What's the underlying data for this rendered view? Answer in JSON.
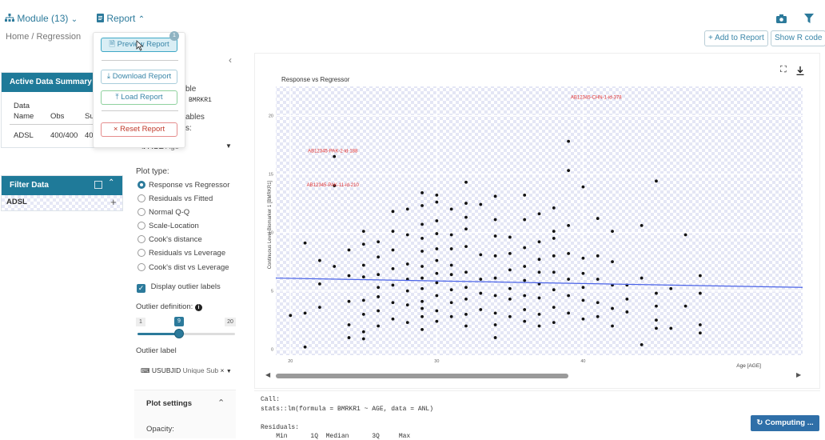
{
  "topbar": {
    "module_label": "Module (13)",
    "report_label": "Report",
    "breadcrumb": "Home / Regression"
  },
  "report_menu": {
    "badge": "1",
    "preview": "Preview Report",
    "download": "Download Report",
    "load": "Load Report",
    "reset": "Reset Report"
  },
  "actions": {
    "add_to_report": "+ Add to Report",
    "show_r_code": "Show R code"
  },
  "active_data": {
    "title": "Active Data Summary",
    "col_data": "Data",
    "col_name": "Name",
    "col_obs": "Obs",
    "col_subjects": "Su",
    "row_name": "ADSL",
    "row_obs": "400/400",
    "row_subjects": "40"
  },
  "filter_data": {
    "title": "Filter Data",
    "dataset": "ADSL"
  },
  "encodings": {
    "frag_variable": "ble",
    "response_value": "BMRKR1",
    "frag_regressor": "ables",
    "frag_colon": "s:",
    "regressor_value": "AGE",
    "regressor_label": "Age",
    "plot_type_label": "Plot type:",
    "plot_types": [
      "Response vs Regressor",
      "Residuals vs Fitted",
      "Normal Q-Q",
      "Scale-Location",
      "Cook's distance",
      "Residuals vs Leverage",
      "Cook's dist vs Leverage"
    ],
    "display_outlier_labels": "Display outlier labels",
    "outlier_def_label": "Outlier definition:",
    "slider_min": "1",
    "slider_value": "9",
    "slider_max": "20",
    "outlier_label_title": "Outlier label",
    "outlier_label_value": "USUBJID",
    "outlier_label_sub": "Unique Sub",
    "plot_settings": "Plot settings",
    "opacity": "Opacity:"
  },
  "output": {
    "call_label": "Call:",
    "call_text": "stats::lm(formula = BMRKR1 ~ AGE, data = ANL)",
    "residuals_label": "Residuals:",
    "residual_headers": "    Min      1Q  Median      3Q     Max",
    "computing": "Computing ..."
  },
  "colors": {
    "accent": "#2c7a9b",
    "header": "#1f7a99",
    "fit_line": "#4a63e8",
    "outlier": "#e03131"
  },
  "chart_data": {
    "type": "scatter",
    "title": "Response vs Regressor",
    "xlabel": "Age [AGE]",
    "ylabel": "Continuous Level Biomarker 1 [BMRKR1]",
    "xlim": [
      19,
      55
    ],
    "ylim": [
      -0.5,
      22.5
    ],
    "xticks": [
      20,
      30,
      40
    ],
    "yticks": [
      0,
      5,
      10,
      15,
      20
    ],
    "fit_line": {
      "x": [
        19,
        55
      ],
      "y": [
        6.1,
        5.3
      ]
    },
    "annotations": [
      {
        "label": "AB12345-CHN-1-id-378",
        "x": 41,
        "y": 21.3
      },
      {
        "label": "AB12345-PAK-2-id-188",
        "x": 23,
        "y": 16.7
      },
      {
        "label": "AB12345-PAK-11-id-210",
        "x": 23,
        "y": 13.8
      }
    ],
    "points": [
      [
        20,
        2.9
      ],
      [
        21,
        9.1
      ],
      [
        21,
        3.1
      ],
      [
        21,
        0.2
      ],
      [
        22,
        7.6
      ],
      [
        22,
        5.6
      ],
      [
        22,
        3.6
      ],
      [
        23,
        16.5
      ],
      [
        23,
        14.0
      ],
      [
        23,
        7.1
      ],
      [
        24,
        8.5
      ],
      [
        24,
        6.3
      ],
      [
        24,
        4.1
      ],
      [
        24,
        2.1
      ],
      [
        24,
        1.0
      ],
      [
        25,
        10.1
      ],
      [
        25,
        9.0
      ],
      [
        25,
        7.2
      ],
      [
        25,
        6.2
      ],
      [
        25,
        4.2
      ],
      [
        25,
        3.0
      ],
      [
        25,
        1.5
      ],
      [
        25,
        0.9
      ],
      [
        26,
        9.2
      ],
      [
        26,
        7.9
      ],
      [
        26,
        6.4
      ],
      [
        26,
        5.3
      ],
      [
        26,
        4.5
      ],
      [
        26,
        3.3
      ],
      [
        26,
        2.0
      ],
      [
        27,
        11.8
      ],
      [
        27,
        10.1
      ],
      [
        27,
        8.5
      ],
      [
        27,
        6.9
      ],
      [
        27,
        5.5
      ],
      [
        27,
        4.0
      ],
      [
        27,
        2.6
      ],
      [
        28,
        12.0
      ],
      [
        28,
        9.8
      ],
      [
        28,
        7.3
      ],
      [
        28,
        6.0
      ],
      [
        28,
        5.0
      ],
      [
        28,
        3.8
      ],
      [
        28,
        2.3
      ],
      [
        29,
        13.4
      ],
      [
        29,
        12.3
      ],
      [
        29,
        10.7
      ],
      [
        29,
        9.5
      ],
      [
        29,
        8.4
      ],
      [
        29,
        7.1
      ],
      [
        29,
        6.1
      ],
      [
        29,
        5.2
      ],
      [
        29,
        4.1
      ],
      [
        29,
        3.5
      ],
      [
        29,
        2.8
      ],
      [
        29,
        1.7
      ],
      [
        30,
        13.2
      ],
      [
        30,
        12.6
      ],
      [
        30,
        11.0
      ],
      [
        30,
        9.9
      ],
      [
        30,
        8.6
      ],
      [
        30,
        7.6
      ],
      [
        30,
        6.5
      ],
      [
        30,
        5.7
      ],
      [
        30,
        4.6
      ],
      [
        30,
        3.3
      ],
      [
        30,
        2.4
      ],
      [
        31,
        12.0
      ],
      [
        31,
        9.8
      ],
      [
        31,
        8.6
      ],
      [
        31,
        7.2
      ],
      [
        31,
        6.4
      ],
      [
        31,
        5.1
      ],
      [
        31,
        4.0
      ],
      [
        31,
        2.8
      ],
      [
        32,
        14.3
      ],
      [
        32,
        12.5
      ],
      [
        32,
        11.3
      ],
      [
        32,
        10.3
      ],
      [
        32,
        8.8
      ],
      [
        32,
        6.6
      ],
      [
        32,
        5.3
      ],
      [
        32,
        4.3
      ],
      [
        32,
        3.0
      ],
      [
        32,
        2.0
      ],
      [
        33,
        12.4
      ],
      [
        33,
        8.1
      ],
      [
        33,
        6.0
      ],
      [
        33,
        4.8
      ],
      [
        33,
        3.4
      ],
      [
        34,
        13.1
      ],
      [
        34,
        11.1
      ],
      [
        34,
        9.7
      ],
      [
        34,
        8.0
      ],
      [
        34,
        6.1
      ],
      [
        34,
        4.6
      ],
      [
        34,
        3.1
      ],
      [
        34,
        2.1
      ],
      [
        34,
        1.0
      ],
      [
        35,
        9.6
      ],
      [
        35,
        8.2
      ],
      [
        35,
        6.8
      ],
      [
        35,
        5.2
      ],
      [
        35,
        4.3
      ],
      [
        35,
        2.8
      ],
      [
        36,
        13.2
      ],
      [
        36,
        11.1
      ],
      [
        36,
        8.7
      ],
      [
        36,
        7.1
      ],
      [
        36,
        5.9
      ],
      [
        36,
        4.6
      ],
      [
        36,
        3.4
      ],
      [
        36,
        2.4
      ],
      [
        37,
        11.6
      ],
      [
        37,
        9.2
      ],
      [
        37,
        7.7
      ],
      [
        37,
        6.6
      ],
      [
        37,
        5.6
      ],
      [
        37,
        4.4
      ],
      [
        37,
        3.0
      ],
      [
        37,
        2.0
      ],
      [
        38,
        12.1
      ],
      [
        38,
        10.1
      ],
      [
        38,
        9.5
      ],
      [
        38,
        8.0
      ],
      [
        38,
        6.6
      ],
      [
        38,
        5.1
      ],
      [
        38,
        3.6
      ],
      [
        38,
        2.3
      ],
      [
        39,
        17.8
      ],
      [
        39,
        15.3
      ],
      [
        39,
        10.6
      ],
      [
        39,
        8.2
      ],
      [
        39,
        6.0
      ],
      [
        39,
        4.6
      ],
      [
        39,
        3.1
      ],
      [
        40,
        13.9
      ],
      [
        40,
        7.8
      ],
      [
        40,
        6.5
      ],
      [
        40,
        5.3
      ],
      [
        40,
        4.2
      ],
      [
        40,
        2.6
      ],
      [
        41,
        11.2
      ],
      [
        41,
        8.0
      ],
      [
        41,
        6.0
      ],
      [
        41,
        4.0
      ],
      [
        41,
        2.8
      ],
      [
        42,
        10.1
      ],
      [
        42,
        7.5
      ],
      [
        42,
        5.5
      ],
      [
        42,
        3.5
      ],
      [
        42,
        2.0
      ],
      [
        43,
        5.5
      ],
      [
        43,
        4.3
      ],
      [
        43,
        3.2
      ],
      [
        44,
        10.6
      ],
      [
        44,
        6.1
      ],
      [
        44,
        0.4
      ],
      [
        45,
        14.4
      ],
      [
        45,
        4.8
      ],
      [
        45,
        3.7
      ],
      [
        45,
        2.5
      ],
      [
        45,
        1.8
      ],
      [
        46,
        5.2
      ],
      [
        46,
        1.8
      ],
      [
        47,
        9.8
      ],
      [
        47,
        3.7
      ],
      [
        48,
        6.3
      ],
      [
        48,
        4.8
      ],
      [
        48,
        2.1
      ],
      [
        48,
        1.4
      ]
    ]
  }
}
